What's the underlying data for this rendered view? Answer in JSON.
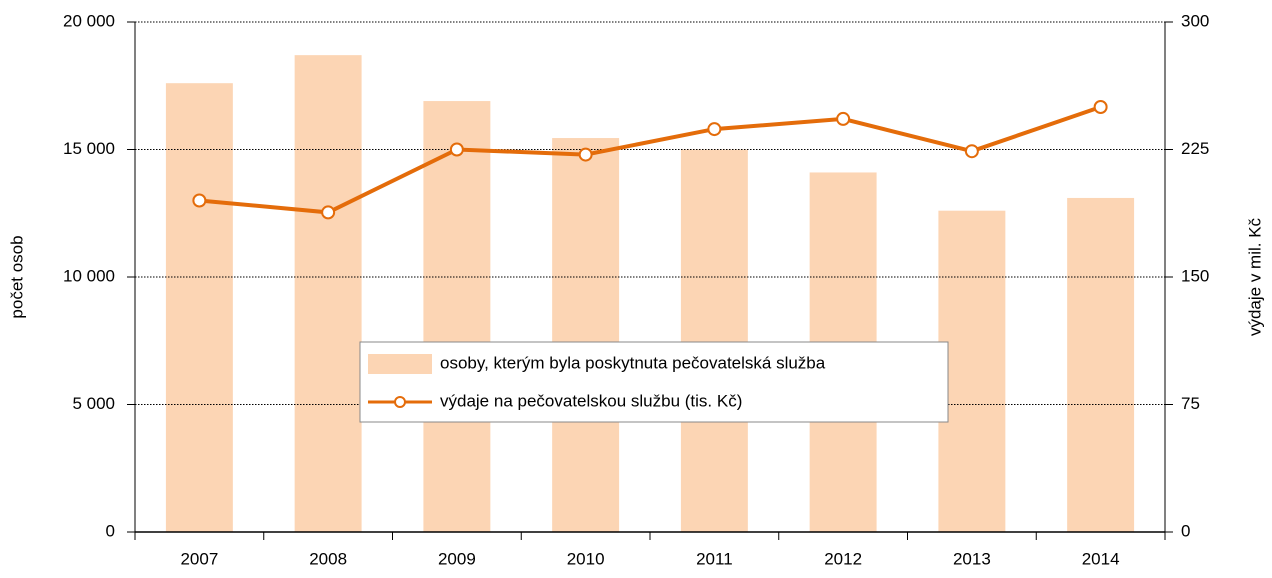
{
  "chart_data": {
    "type": "bar_line",
    "categories": [
      "2007",
      "2008",
      "2009",
      "2010",
      "2011",
      "2012",
      "2013",
      "2014"
    ],
    "series": [
      {
        "name": "osoby, kterým byla poskytnuta pečovatelská služba",
        "type": "bar",
        "color": "#fcd5b4",
        "values": [
          17600,
          18700,
          16900,
          15450,
          15000,
          14100,
          12600,
          13100
        ]
      },
      {
        "name": "výdaje na pečovatelskou službu (tis. Kč)",
        "type": "line",
        "axis": "y2",
        "color": "#e46c0a",
        "values": [
          195,
          188,
          225,
          222,
          237,
          243,
          224,
          250
        ]
      }
    ],
    "ylabel": "počet osob",
    "y2label": "výdaje v mil. Kč",
    "ylim": [
      0,
      20000
    ],
    "yticks": [
      {
        "value": 0,
        "label": "0"
      },
      {
        "value": 5000,
        "label": "5 000"
      },
      {
        "value": 10000,
        "label": "10 000"
      },
      {
        "value": 15000,
        "label": "15 000"
      },
      {
        "value": 20000,
        "label": "20 000"
      }
    ],
    "y2lim": [
      0,
      300
    ],
    "y2ticks": [
      0,
      75,
      150,
      225,
      300
    ],
    "grid": true,
    "legend": "center"
  }
}
